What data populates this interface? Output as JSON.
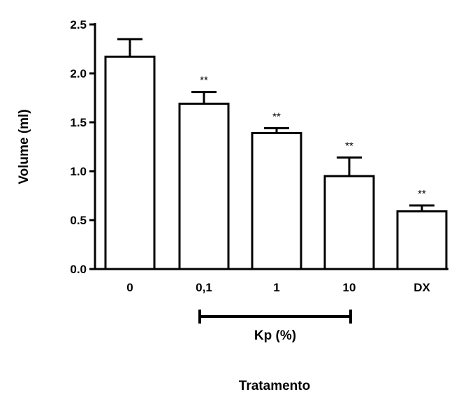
{
  "chart_data": {
    "type": "bar",
    "categories": [
      "0",
      "0,1",
      "1",
      "10",
      "DX"
    ],
    "values": [
      2.17,
      1.69,
      1.39,
      0.95,
      0.59
    ],
    "errors": [
      0.18,
      0.12,
      0.05,
      0.19,
      0.06
    ],
    "significance": [
      "",
      "**",
      "**",
      "**",
      "**"
    ],
    "ylabel": "Volume (ml)",
    "xlabel": "Tratamento",
    "group_bracket": {
      "label": "Kp (%)",
      "from": "0,1",
      "to": "10"
    },
    "ylim": [
      0,
      2.5
    ],
    "yticks": [
      0.0,
      0.5,
      1.0,
      1.5,
      2.0,
      2.5
    ],
    "ytick_labels": [
      "0.0",
      "0.5",
      "1.0",
      "1.5",
      "2.0",
      "2.5"
    ],
    "bar_fill": "#ffffff",
    "bar_stroke": "#000000",
    "grid": false
  }
}
